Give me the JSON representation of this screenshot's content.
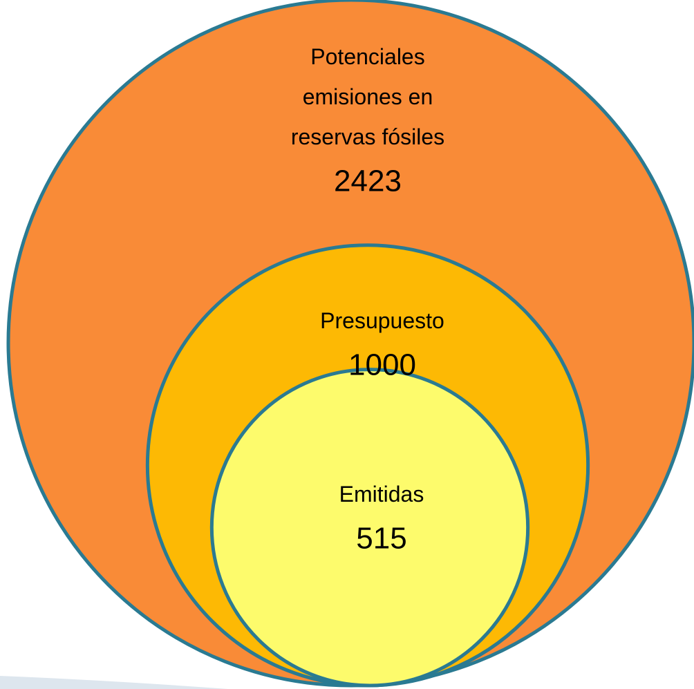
{
  "chart_data": {
    "type": "nested_circles",
    "categories": [
      "Potenciales\nemisiones en\nreservas fósiles",
      "Presupuesto",
      "Emitidas"
    ],
    "values": [
      2423,
      1000,
      515
    ],
    "colors": [
      "#f98b37",
      "#fdb904",
      "#fdfb6c"
    ],
    "stroke": "#2a7a92"
  }
}
